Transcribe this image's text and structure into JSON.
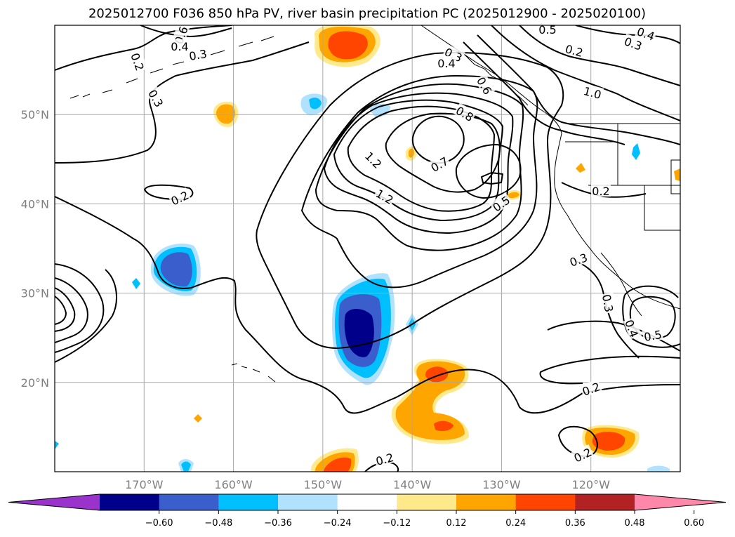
{
  "chart_data": {
    "type": "contour-map",
    "title": "2025012700 F036 850 hPa PV, river basin precipitation PC (2025012900 - 2025020100)",
    "lon_range": [
      -180,
      -110
    ],
    "lat_range": [
      10,
      60
    ],
    "xticks": [
      {
        "lon": -170,
        "label": "170°W"
      },
      {
        "lon": -160,
        "label": "160°W"
      },
      {
        "lon": -150,
        "label": "150°W"
      },
      {
        "lon": -140,
        "label": "140°W"
      },
      {
        "lon": -130,
        "label": "130°W"
      },
      {
        "lon": -120,
        "label": "120°W"
      }
    ],
    "yticks": [
      {
        "lat": 50,
        "label": "50°N"
      },
      {
        "lat": 40,
        "label": "40°N"
      },
      {
        "lat": 30,
        "label": "30°N"
      },
      {
        "lat": 20,
        "label": "20°N"
      }
    ],
    "grid": true,
    "colorbar": {
      "orientation": "horizontal",
      "extend": "both",
      "levels": [
        -0.72,
        -0.6,
        -0.48,
        -0.36,
        -0.24,
        -0.12,
        0.12,
        0.24,
        0.36,
        0.48,
        0.6,
        0.72
      ],
      "colors": [
        "#9933cc",
        "#00008b",
        "#3a5fcd",
        "#00bfff",
        "#b0e2ff",
        "#ffffff",
        "#ffe98a",
        "#ffa500",
        "#ff4500",
        "#b22222",
        "#ff88aa"
      ],
      "tick_labels": [
        "−0.60",
        "−0.48",
        "−0.36",
        "−0.24",
        "−0.12",
        "0.12",
        "0.24",
        "0.36",
        "0.48",
        "0.60"
      ]
    },
    "precip_anomalies": [
      {
        "lon": -148,
        "lat": 58,
        "peak": 0.4
      },
      {
        "lon": -160.5,
        "lat": 50,
        "peak": 0.3
      },
      {
        "lon": -165,
        "lat": 32,
        "peak": -0.45
      },
      {
        "lon": -146,
        "lat": 26,
        "peak": -0.6
      },
      {
        "lon": -141,
        "lat": 18,
        "peak": 0.35
      },
      {
        "lon": -139,
        "lat": 16,
        "peak": 0.4
      },
      {
        "lon": -117,
        "lat": 13,
        "peak": 0.4
      },
      {
        "lon": -147,
        "lat": 11,
        "peak": 0.4
      },
      {
        "lon": -151,
        "lat": 51,
        "peak": -0.2
      },
      {
        "lon": -144,
        "lat": 49.5,
        "peak": -0.2
      },
      {
        "lon": -165,
        "lat": 10.5,
        "peak": -0.25
      },
      {
        "lon": -140,
        "lat": 27,
        "peak": -0.2
      },
      {
        "lon": -140,
        "lat": 45.5,
        "peak": 0.2
      },
      {
        "lon": -128.5,
        "lat": 40.5,
        "peak": 0.2
      }
    ],
    "pv_contour_labels": [
      "0.6",
      "0.4",
      "0.3",
      "0.2",
      "0.3",
      "0.2",
      "0.3",
      "0.4",
      "0.6",
      "1.0",
      "0.8",
      "1.2",
      "0.7",
      "1.2",
      "0.5",
      "0.2",
      "0.5",
      "0.4",
      "0.3",
      "0.2",
      "0.3",
      "0.3",
      "0.4",
      "0.5",
      "0.2",
      "0.2",
      "0.2"
    ]
  }
}
